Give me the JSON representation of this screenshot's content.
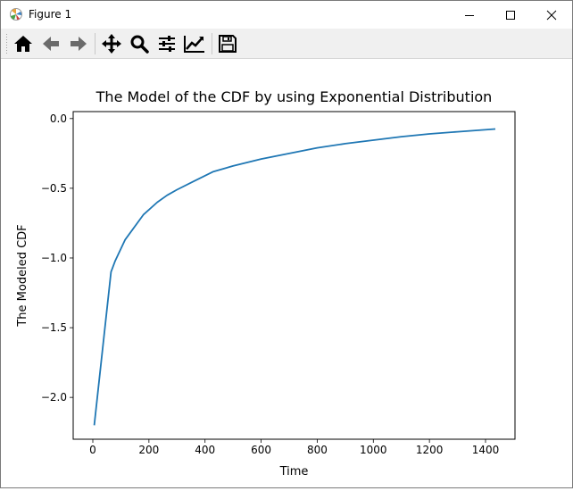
{
  "window": {
    "title": "Figure 1"
  },
  "toolbar": {
    "tools": [
      {
        "name": "home-icon"
      },
      {
        "name": "back-arrow-icon"
      },
      {
        "name": "forward-arrow-icon"
      },
      {
        "name": "pan-move-icon"
      },
      {
        "name": "zoom-magnifier-icon"
      },
      {
        "name": "configure-subplots-icon"
      },
      {
        "name": "edit-axis-curve-icon"
      },
      {
        "name": "save-floppy-icon"
      }
    ]
  },
  "colors": {
    "line": "#1f77b4",
    "toolbar_bg": "#f0f0f0"
  },
  "chart_data": {
    "type": "line",
    "title": "The Model of the CDF by using Exponential Distribution",
    "xlabel": "Time",
    "ylabel": "The Modeled CDF",
    "xlim": [
      -70,
      1505
    ],
    "ylim": [
      -2.3,
      0.05
    ],
    "xticks": [
      0,
      200,
      400,
      600,
      800,
      1000,
      1200,
      1400
    ],
    "yticks": [
      0.0,
      -0.5,
      -1.0,
      -1.5,
      -2.0
    ],
    "xtick_labels": [
      "0",
      "200",
      "400",
      "600",
      "800",
      "1000",
      "1200",
      "1400"
    ],
    "ytick_labels": [
      "0.0",
      "−0.5",
      "−1.0",
      "−1.5",
      "−2.0"
    ],
    "grid": false,
    "series": [
      {
        "x": [
          5,
          35,
          65,
          80,
          115,
          180,
          230,
          265,
          300,
          360,
          430,
          500,
          600,
          700,
          800,
          900,
          1000,
          1100,
          1200,
          1300,
          1435
        ],
        "values": [
          -2.2,
          -1.65,
          -1.1,
          -1.02,
          -0.87,
          -0.69,
          -0.6,
          -0.55,
          -0.51,
          -0.45,
          -0.38,
          -0.34,
          -0.29,
          -0.25,
          -0.21,
          -0.18,
          -0.155,
          -0.13,
          -0.11,
          -0.095,
          -0.075
        ]
      }
    ]
  }
}
